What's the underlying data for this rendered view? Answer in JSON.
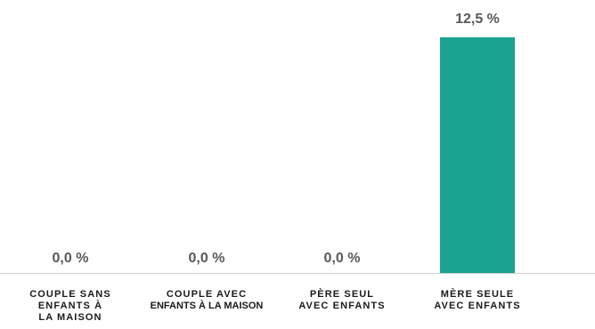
{
  "chart_data": {
    "type": "bar",
    "categories": [
      [
        "COUPLE SANS",
        "ENFANTS À",
        "LA MAISON"
      ],
      [
        "COUPLE AVEC",
        "ENFANTS À LA MAISON"
      ],
      [
        "PÈRE SEUL",
        "AVEC ENFANTS"
      ],
      [
        "MÈRE SEULE",
        "AVEC ENFANTS"
      ]
    ],
    "values": [
      0.0,
      0.0,
      0.0,
      12.5
    ],
    "value_labels": [
      "0,0 %",
      "0,0 %",
      "0,0 %",
      "12,5 %"
    ],
    "ylim": [
      0,
      12.5
    ],
    "grid": false,
    "colors": {
      "bar": "#1aa391",
      "axis": "#d0d0d0",
      "value_text": "#595959",
      "category_text": "#1a1a1a"
    }
  }
}
